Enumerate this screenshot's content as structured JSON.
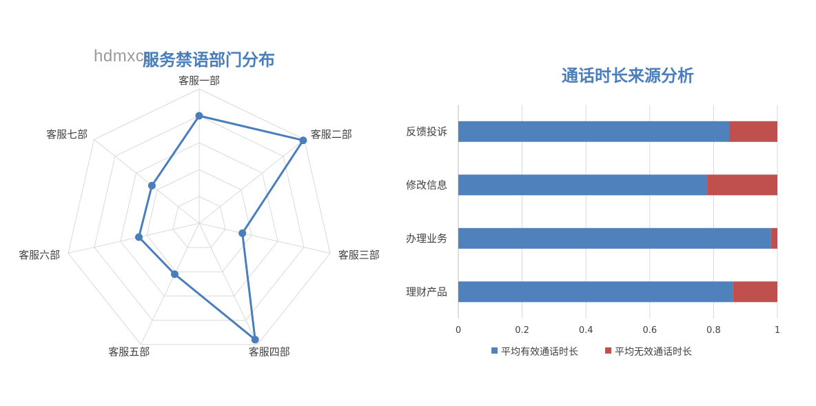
{
  "watermark": "hdmxcg",
  "chart_data": [
    {
      "type": "radar",
      "title": "服务禁语部门分布",
      "categories": [
        "客服一部",
        "客服二部",
        "客服三部",
        "客服四部",
        "客服五部",
        "客服六部",
        "客服七部"
      ],
      "series": [
        {
          "values": [
            0.8,
            0.99,
            0.33,
            0.96,
            0.42,
            0.46,
            0.45
          ]
        }
      ],
      "rlim": [
        0,
        1
      ],
      "grid": true,
      "colors": {
        "line": "#4a7ebb",
        "grid": "#d9d9d9"
      }
    },
    {
      "type": "bar",
      "orientation": "horizontal",
      "stacked": true,
      "title": "通话时长来源分析",
      "categories": [
        "反馈投诉",
        "修改信息",
        "办理业务",
        "理财产品"
      ],
      "series": [
        {
          "name": "平均有效通话时长",
          "values": [
            0.85,
            0.78,
            0.98,
            0.86
          ],
          "color": "#4f81bd"
        },
        {
          "name": "平均无效通话时长",
          "values": [
            0.15,
            0.22,
            0.02,
            0.14
          ],
          "color": "#c0504d"
        }
      ],
      "xticks": [
        "0",
        "0.2",
        "0.4",
        "0.6",
        "0.8",
        "1"
      ],
      "xlim": [
        0,
        1
      ],
      "grid": true,
      "legend": "bottom"
    }
  ]
}
